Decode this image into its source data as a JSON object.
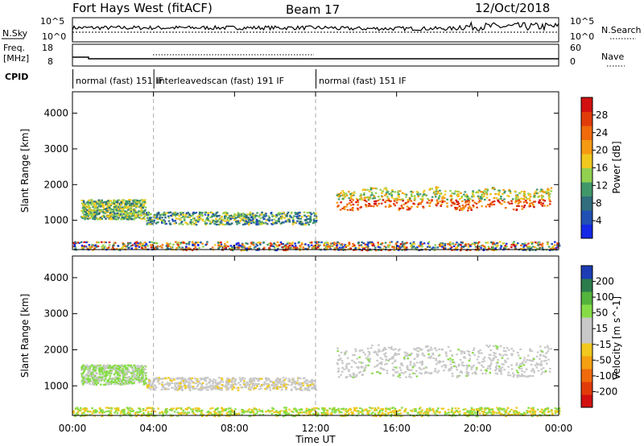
{
  "header": {
    "station": "Fort Hays West (fitACF)",
    "beam": "Beam 17",
    "date": "12/Oct/2018"
  },
  "strip_labels": {
    "nsky": "N.Sky",
    "freq_line1": "Freq.",
    "freq_line2": "[MHz]",
    "cpid": "CPID",
    "nsearch": "N.Search",
    "nave": "Nave"
  },
  "strip_ticks": {
    "nsky_left_top": "10^5",
    "nsky_left_bottom": "10^0",
    "nsky_right_top": "10^5",
    "nsky_right_bottom": "10^0",
    "freq_left_top": "18",
    "freq_left_bottom": "8",
    "nave_right_top": "60",
    "nave_right_bottom": "0"
  },
  "cpid_segments": [
    {
      "label": "normal (fast)  151 IF",
      "start_hour": 0,
      "end_hour": 4
    },
    {
      "label": "interleavedscan (fast) 191 IF",
      "start_hour": 4,
      "end_hour": 12
    },
    {
      "label": "normal (fast)  151 IF",
      "start_hour": 12,
      "end_hour": 24
    }
  ],
  "x_axis": {
    "label": "Time UT",
    "range_hours": [
      0,
      24
    ],
    "ticks": [
      {
        "hour": 0,
        "label": "00:00"
      },
      {
        "hour": 4,
        "label": "04:00"
      },
      {
        "hour": 8,
        "label": "08:00"
      },
      {
        "hour": 12,
        "label": "12:00"
      },
      {
        "hour": 16,
        "label": "16:00"
      },
      {
        "hour": 20,
        "label": "20:00"
      },
      {
        "hour": 24,
        "label": "00:00"
      }
    ],
    "dashed_marker_hours": [
      4,
      12
    ]
  },
  "chart_data": [
    {
      "type": "heatmap",
      "quantity": "Power",
      "ylabel": "Slant Range [km]",
      "ylim": [
        180,
        4600
      ],
      "yticks": [
        1000,
        2000,
        3000,
        4000
      ],
      "colorbar": {
        "label": "Power [dB]",
        "range": [
          0,
          32
        ],
        "ticks": [
          "4",
          "8",
          "12",
          "16",
          "20",
          "24",
          "28"
        ],
        "colors": [
          "#1428e6",
          "#2050b4",
          "#306e7e",
          "#40986a",
          "#92d050",
          "#f0c81e",
          "#f59a12",
          "#f06a0c",
          "#e23b0a",
          "#d21010"
        ]
      },
      "echo_regions": [
        {
          "t0": 0.4,
          "t1": 3.6,
          "r_lo": 1050,
          "r_hi": 1600,
          "level": "12-20 dB"
        },
        {
          "t0": 3.6,
          "t1": 12.0,
          "r_lo": 900,
          "r_hi": 1250,
          "level": "8-20 dB"
        },
        {
          "t0": 13.0,
          "t1": 23.6,
          "r_lo": 1350,
          "r_hi": 1900,
          "level": "16-32 dB"
        },
        {
          "t0": 0.0,
          "t1": 24.0,
          "r_lo": 180,
          "r_hi": 420,
          "level": "4-28 dB"
        }
      ]
    },
    {
      "type": "heatmap",
      "quantity": "Velocity",
      "ylabel": "Slant Range [km]",
      "ylim": [
        180,
        4600
      ],
      "yticks": [
        1000,
        2000,
        3000,
        4000
      ],
      "colorbar": {
        "label": "Velocity [m s^-1]",
        "ticks": [
          "200",
          "100",
          "50",
          "15",
          "-15",
          "-50",
          "-100",
          "-200"
        ],
        "colors": [
          "#1c3cb4",
          "#2c7c4c",
          "#54b43c",
          "#86dc46",
          "#c8c8c8",
          "#c8c8c8",
          "#f0c81e",
          "#f5a010",
          "#f06a0c",
          "#e23b0a",
          "#d21010"
        ]
      },
      "echo_regions": [
        {
          "t0": 0.4,
          "t1": 3.6,
          "r_lo": 1050,
          "r_hi": 1600,
          "level": "15 to 100 m/s"
        },
        {
          "t0": 3.6,
          "t1": 12.0,
          "r_lo": 900,
          "r_hi": 1250,
          "level": "-15 to 15 m/s"
        },
        {
          "t0": 13.0,
          "t1": 23.6,
          "r_lo": 1300,
          "r_hi": 2100,
          "level": "-15 to 15 m/s"
        },
        {
          "t0": 0.0,
          "t1": 24.0,
          "r_lo": 180,
          "r_hi": 420,
          "level": "-50 to 50 m/s"
        }
      ]
    }
  ]
}
